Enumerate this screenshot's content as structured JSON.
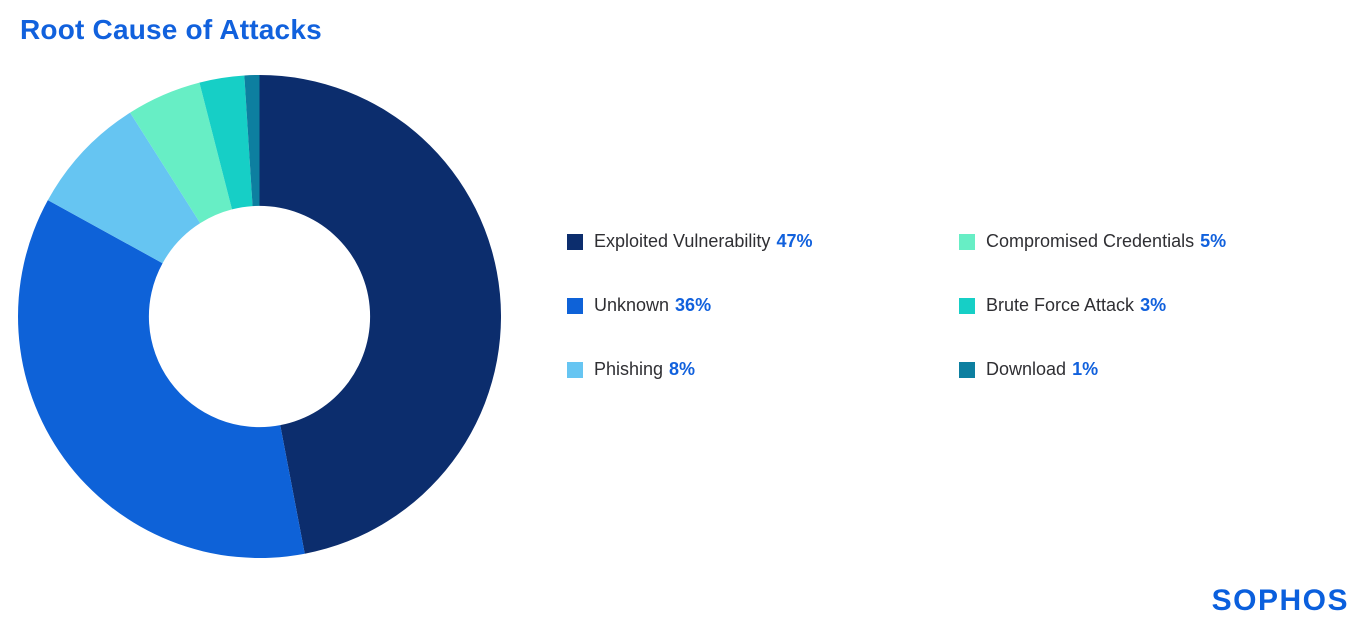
{
  "title": "Root Cause of Attacks",
  "brand": {
    "logo_text": "SOPHOS"
  },
  "colors": {
    "title": "#1161dd",
    "percent": "#1161dd",
    "label": "#2f2f33",
    "logo": "#0a5fdd",
    "background": "#ffffff"
  },
  "chart_data": {
    "type": "pie",
    "title": "Root Cause of Attacks",
    "donut": true,
    "start_angle_deg": 0,
    "direction": "clockwise",
    "inner_radius_ratio": 0.458,
    "legend_position": "right",
    "series": [
      {
        "name": "Exploited Vulnerability",
        "value": 47,
        "color": "#0c2d6d"
      },
      {
        "name": "Unknown",
        "value": 36,
        "color": "#0e62d8"
      },
      {
        "name": "Phishing",
        "value": 8,
        "color": "#66c5f2"
      },
      {
        "name": "Compromised Credentials",
        "value": 5,
        "color": "#67eec5"
      },
      {
        "name": "Brute Force Attack",
        "value": 3,
        "color": "#16cfc6"
      },
      {
        "name": "Download",
        "value": 1,
        "color": "#0d7fa0"
      }
    ]
  }
}
